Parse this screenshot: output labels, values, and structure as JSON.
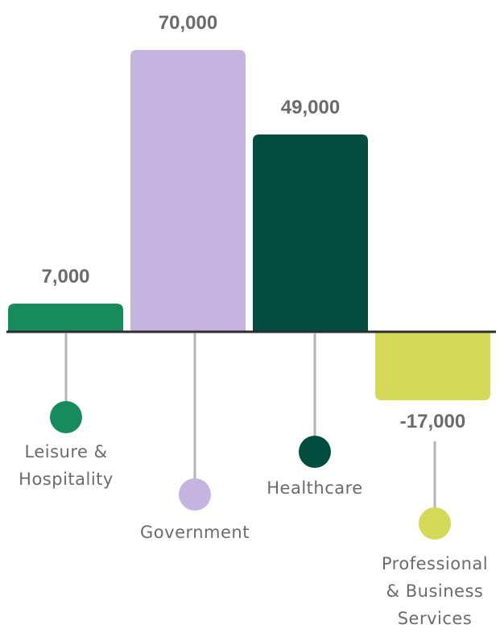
{
  "chart_data": {
    "type": "bar",
    "categories": [
      "Leisure & Hospitality",
      "Government",
      "Healthcare",
      "Professional & Business Services"
    ],
    "values": [
      7000,
      70000,
      49000,
      -17000
    ],
    "value_labels": [
      "7,000",
      "70,000",
      "49,000",
      "-17,000"
    ],
    "category_label_lines": [
      [
        "Leisure &",
        "Hospitality"
      ],
      [
        "Government"
      ],
      [
        "Healthcare"
      ],
      [
        "Professional",
        "& Business",
        "Services"
      ]
    ],
    "colors": [
      "#178A5E",
      "#C5B3E0",
      "#024D3E",
      "#D4D957"
    ],
    "axis_color": "#2d2d2d",
    "stem_color": "#b3b3b3",
    "label_color": "#6b6b6b",
    "grid": false,
    "legend": "none"
  }
}
